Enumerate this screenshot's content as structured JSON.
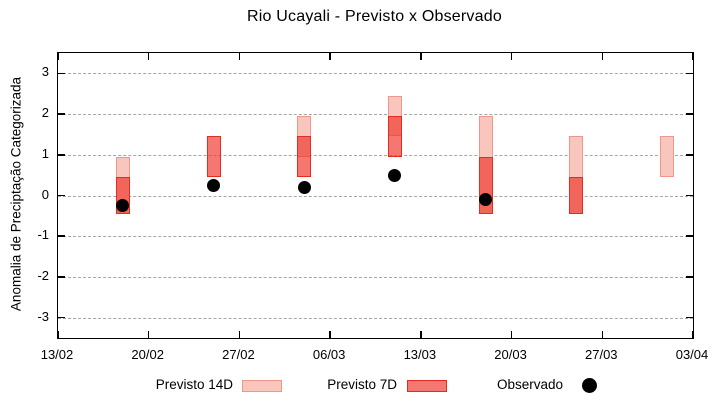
{
  "chart_data": {
    "type": "bar",
    "variant": "floating-range-bars-with-scatter",
    "title": "Rio Ucayali - Previsto x Observado",
    "xlabel": "",
    "ylabel": "Anomalia de Preciptação Categorizada",
    "ylim": [
      -3.5,
      3.5
    ],
    "yticks": [
      -3,
      -2,
      -1,
      0,
      1,
      2,
      3
    ],
    "xtick_labels": [
      "13/02",
      "20/02",
      "27/02",
      "06/03",
      "13/03",
      "20/03",
      "27/03",
      "03/04"
    ],
    "xtick_days": [
      0,
      7,
      14,
      21,
      28,
      35,
      42,
      49
    ],
    "x_total_days": 49,
    "grid": "horizontal-dashed",
    "legend_position": "bottom-center",
    "series": [
      {
        "name": "Previsto 14D",
        "type": "range-bar",
        "fill": "#f9c6bd",
        "stroke": "#f0968b",
        "points": [
          {
            "date": "18/02",
            "day": 5,
            "low": -0.45,
            "high": 0.95
          },
          {
            "date": "04/03",
            "day": 19,
            "low": 0.95,
            "high": 1.95
          },
          {
            "date": "11/03",
            "day": 26,
            "low": 1.45,
            "high": 2.45
          },
          {
            "date": "18/03",
            "day": 33,
            "low": -0.45,
            "high": 1.95
          },
          {
            "date": "25/03",
            "day": 40,
            "low": -0.45,
            "high": 1.45
          },
          {
            "date": "01/04",
            "day": 47,
            "low": 0.45,
            "high": 1.45
          }
        ]
      },
      {
        "name": "Previsto 7D",
        "type": "range-bar",
        "fill": "rgba(238,50,40,0.66)",
        "stroke": "#e42d1e",
        "points": [
          {
            "date": "18/02",
            "day": 5,
            "low": -0.45,
            "high": 0.45
          },
          {
            "date": "25/02",
            "day": 12,
            "low": 0.45,
            "high": 1.45
          },
          {
            "date": "04/03",
            "day": 19,
            "low": 0.45,
            "high": 1.45
          },
          {
            "date": "11/03",
            "day": 26,
            "low": 0.95,
            "high": 1.95
          },
          {
            "date": "18/03",
            "day": 33,
            "low": -0.45,
            "high": 0.95
          },
          {
            "date": "25/03",
            "day": 40,
            "low": -0.45,
            "high": 0.45
          }
        ]
      },
      {
        "name": "Observado",
        "type": "scatter",
        "color": "#000000",
        "points": [
          {
            "date": "18/02",
            "day": 5,
            "value": -0.25
          },
          {
            "date": "25/02",
            "day": 12,
            "value": 0.25
          },
          {
            "date": "04/03",
            "day": 19,
            "value": 0.2
          },
          {
            "date": "11/03",
            "day": 26,
            "value": 0.5
          },
          {
            "date": "18/03",
            "day": 33,
            "value": -0.1
          }
        ]
      }
    ],
    "colors": {
      "grid": "#a6a6a6",
      "axis_border": "#000000",
      "text": "#000000"
    }
  }
}
